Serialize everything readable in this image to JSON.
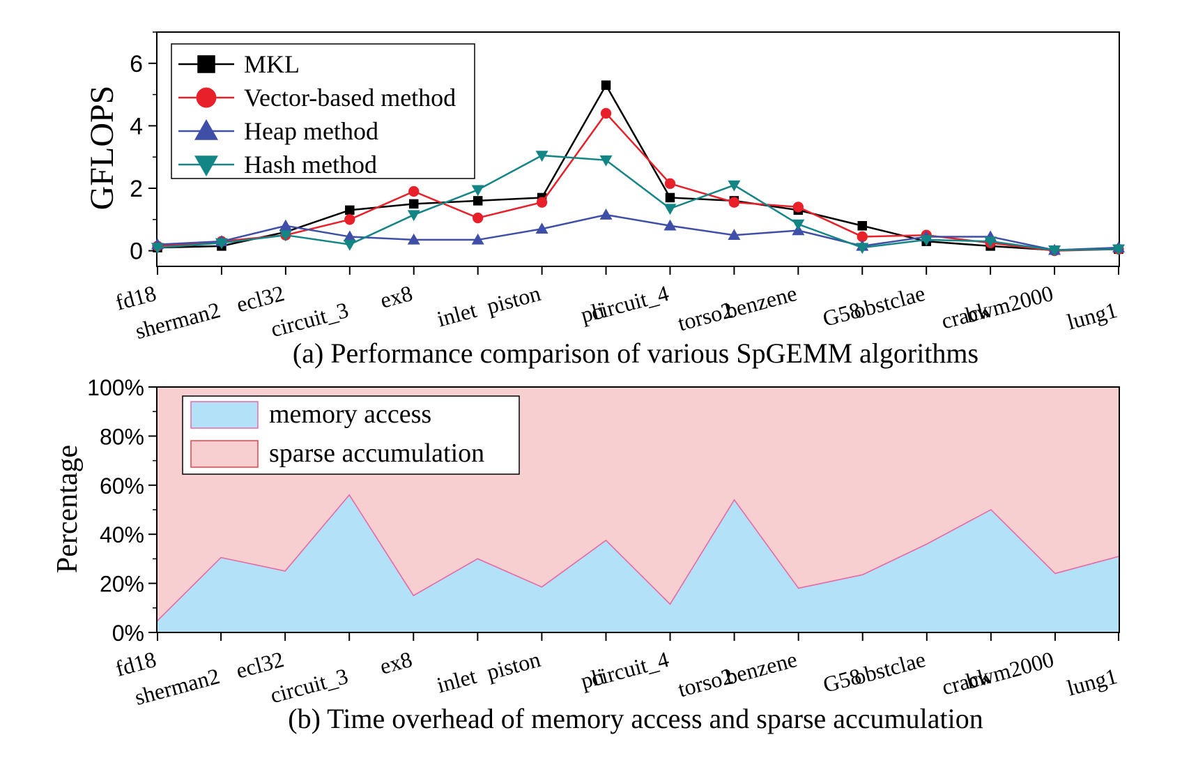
{
  "chart_data": [
    {
      "type": "line",
      "caption": "(a) Performance comparison of various SpGEMM algorithms",
      "ylabel": "GFLOPS",
      "xlabel": "",
      "ylim": [
        -0.5,
        7
      ],
      "yticks": [
        "0",
        "2",
        "4",
        "6"
      ],
      "categories": [
        "fd18",
        "sherman2",
        "ecl32",
        "circuit_3",
        "ex8",
        "inlet",
        "piston",
        "pli",
        "circuit_4",
        "torso2",
        "benzene",
        "G58",
        "obstclae",
        "crack",
        "bwm2000",
        "lung1"
      ],
      "legend_position": "top-left",
      "series": [
        {
          "name": "MKL",
          "color": "#000000",
          "marker": "square",
          "values": [
            0.1,
            0.15,
            0.6,
            1.3,
            1.5,
            1.6,
            1.7,
            5.3,
            1.7,
            1.6,
            1.3,
            0.8,
            0.3,
            0.15,
            0.02,
            0.05
          ]
        },
        {
          "name": "Vector-based method",
          "color": "#e8202a",
          "marker": "circle",
          "values": [
            0.15,
            0.3,
            0.5,
            1.0,
            1.9,
            1.05,
            1.55,
            4.4,
            2.15,
            1.55,
            1.4,
            0.45,
            0.5,
            0.25,
            0.0,
            0.05
          ]
        },
        {
          "name": "Heap method",
          "color": "#3f4fa8",
          "marker": "triangle-up",
          "values": [
            0.2,
            0.3,
            0.8,
            0.45,
            0.35,
            0.35,
            0.7,
            1.15,
            0.8,
            0.5,
            0.65,
            0.15,
            0.45,
            0.45,
            0.02,
            0.1
          ]
        },
        {
          "name": "Hash method",
          "color": "#138585",
          "marker": "triangle-down",
          "values": [
            0.1,
            0.25,
            0.5,
            0.2,
            1.15,
            1.95,
            3.05,
            2.9,
            1.35,
            2.1,
            0.85,
            0.1,
            0.35,
            0.3,
            0.02,
            0.05
          ]
        }
      ]
    },
    {
      "type": "area",
      "caption": "(b) Time overhead of memory access and sparse accumulation",
      "ylabel": "Percentage",
      "xlabel": "",
      "ylim": [
        0,
        100
      ],
      "yticks": [
        "0%",
        "20%",
        "40%",
        "60%",
        "80%",
        "100%"
      ],
      "stacked": true,
      "categories": [
        "fd18",
        "sherman2",
        "ecl32",
        "circuit_3",
        "ex8",
        "inlet",
        "piston",
        "pli",
        "circuit_4",
        "torso2",
        "benzene",
        "G58",
        "obstclae",
        "crack",
        "bwm2000",
        "lung1"
      ],
      "legend_position": "top-left",
      "series": [
        {
          "name": "memory access",
          "color": "#b3e1f7",
          "values": [
            4.5,
            30.5,
            25,
            56,
            15,
            30,
            18.5,
            37.5,
            11.5,
            54,
            18,
            23.5,
            36,
            50,
            24,
            31
          ]
        },
        {
          "name": "sparse accumulation",
          "color": "#f8cfd0",
          "values": [
            95.5,
            69.5,
            75,
            44,
            85,
            70,
            81.5,
            62.5,
            88.5,
            46,
            82,
            76.5,
            64,
            50,
            76,
            69
          ]
        }
      ]
    }
  ]
}
